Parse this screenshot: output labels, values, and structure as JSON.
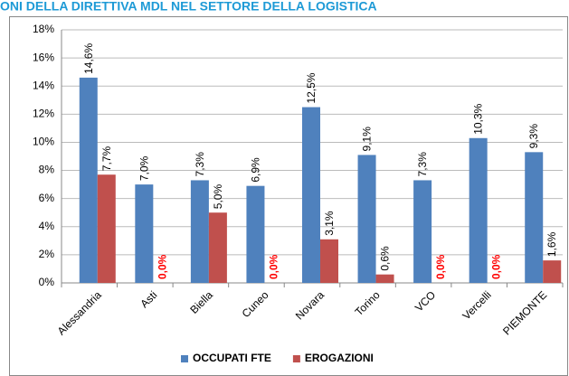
{
  "chart_data": {
    "type": "bar",
    "title": "ONI DELLA DIRETTIVA MDL NEL SETTORE DELLA LOGISTICA",
    "categories": [
      "Alessandria",
      "Asti",
      "Biella",
      "Cuneo",
      "Novara",
      "Torino",
      "VCO",
      "Vercelli",
      "PIEMONTE"
    ],
    "series": [
      {
        "name": "OCCUPATI FTE",
        "color": "#4f81bd",
        "values": [
          14.6,
          7.0,
          7.3,
          6.9,
          12.5,
          9.1,
          7.3,
          10.3,
          9.3
        ],
        "value_labels": [
          "14,6%",
          "7,0%",
          "7,3%",
          "6,9%",
          "12,5%",
          "9,1%",
          "7,3%",
          "10,3%",
          "9,3%"
        ]
      },
      {
        "name": "EROGAZIONI",
        "color": "#c0504d",
        "values": [
          7.7,
          0,
          5.0,
          0,
          3.1,
          0.6,
          0,
          0,
          1.6
        ],
        "value_labels": [
          "7,7%",
          "0,0%",
          "5,0%",
          "0,0%",
          "3,1%",
          "0,6%",
          "0,0%",
          "0,0%",
          "1,6%"
        ]
      }
    ],
    "zero_label_color": "#ff0000",
    "ylim": [
      0,
      18
    ],
    "yticks": [
      {
        "value": 0,
        "label": "0%"
      },
      {
        "value": 2,
        "label": "2%"
      },
      {
        "value": 4,
        "label": "4%"
      },
      {
        "value": 6,
        "label": "6%"
      },
      {
        "value": 8,
        "label": "8%"
      },
      {
        "value": 10,
        "label": "10%"
      },
      {
        "value": 12,
        "label": "12%"
      },
      {
        "value": 14,
        "label": "14%"
      },
      {
        "value": 16,
        "label": "16%"
      },
      {
        "value": 18,
        "label": "18%"
      }
    ],
    "grid": true,
    "legend": "bottom"
  }
}
